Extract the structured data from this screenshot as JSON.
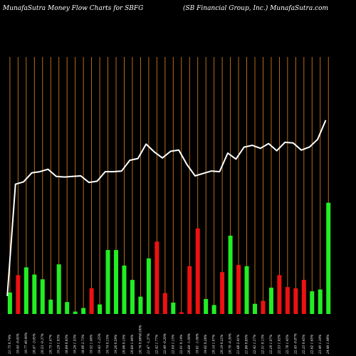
{
  "header": {
    "left_title": "MunafaSutra  Money Flow  Charts for SBFG",
    "right_title": "(SB Financial Group,  Inc.) MunafaSutra.com"
  },
  "colors": {
    "background": "#000000",
    "grid": "#c8781e",
    "line": "#ffffff",
    "up_bar": "#22ee22",
    "down_bar": "#ee1111",
    "text": "#ffffff"
  },
  "chart_data": {
    "type": "bar",
    "title": "",
    "xlabel": "",
    "ylabel": "",
    "grid": true,
    "categories": [
      "21.75  0.74%",
      "19.44  -9.65%",
      "19.77  40.96%",
      "20.47  -3.65%",
      "20.53  -0.37%",
      "20.75  1.47%",
      "19.29  1.03%",
      "18.84  0.93%",
      "19.26  1.53%",
      "18.00  2.73%",
      "19.52  1.46%",
      "19.43  -1.25%",
      "19.74  0.15%",
      "19.26  0.59%",
      "20.06  0.15%",
      "20.84  1.40%",
      "20.76  0.98%",
      "21.47  -1.37%",
      "22.42  1.77%",
      "22.40  -0.20%",
      "22.04  1.15%",
      "22.01  0.14%",
      "20.64  -1.09%",
      "19.81  -1.06%",
      "19.92  0.28%",
      "20.14  1.07%",
      "20.19  0.22%",
      "20.70  -0.30%",
      "21.68  2.41%",
      "21.86  0.85%",
      "22.42  1.37%",
      "22.51  0.13%",
      "22.20  1.07%",
      "22.53  1.02%",
      "22.78  1.45%",
      "22.45  -0.87%",
      "22.33  0.45%",
      "22.62  1.65%",
      "23.40  1.34%",
      "24.48  1.98%"
    ],
    "extra_tick_label": "0.00%",
    "series": [
      {
        "type": "line",
        "values": [
          3.0,
          21.7,
          22.1,
          23.6,
          23.8,
          24.2,
          23.0,
          22.9,
          23.0,
          23.1,
          22.0,
          22.2,
          23.8,
          23.8,
          23.9,
          25.7,
          26.0,
          28.4,
          27.1,
          26.1,
          27.2,
          27.4,
          25.0,
          23.1,
          23.5,
          23.9,
          23.8,
          26.9,
          25.9,
          27.9,
          28.2,
          27.7,
          28.5,
          27.3,
          28.7,
          28.6,
          27.4,
          27.9,
          29.2,
          32.4
        ]
      },
      {
        "type": "bar",
        "values": [
          3.6,
          6.5,
          7.8,
          6.6,
          5.8,
          2.4,
          8.3,
          2.0,
          0.4,
          1.0,
          4.3,
          1.6,
          10.7,
          10.7,
          8.1,
          5.7,
          2.9,
          9.3,
          12.1,
          3.5,
          1.9,
          0.3,
          8.0,
          14.3,
          2.5,
          1.5,
          7.0,
          13.1,
          8.2,
          8.0,
          1.7,
          2.2,
          4.4,
          6.5,
          4.5,
          4.3,
          5.7,
          3.8,
          4.1,
          18.6
        ],
        "directions": [
          "up",
          "down",
          "up",
          "up",
          "up",
          "up",
          "up",
          "up",
          "up",
          "up",
          "down",
          "up",
          "up",
          "up",
          "up",
          "up",
          "up",
          "up",
          "down",
          "down",
          "up",
          "down",
          "down",
          "down",
          "up",
          "up",
          "down",
          "up",
          "down",
          "up",
          "up",
          "down",
          "up",
          "down",
          "down",
          "down",
          "down",
          "up",
          "up",
          "up"
        ]
      }
    ]
  }
}
